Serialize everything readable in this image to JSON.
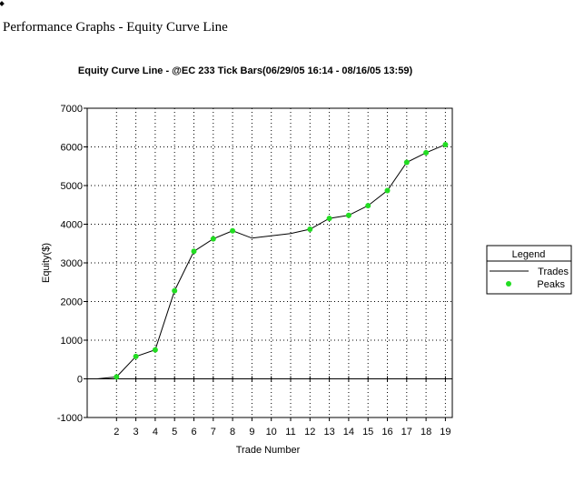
{
  "page": {
    "heading": "Performance Graphs - Equity Curve Line"
  },
  "chart_data": {
    "type": "line",
    "title": "Equity Curve Line - @EC 233 Tick Bars(06/29/05 16:14 - 08/16/05 13:59)",
    "xlabel": "Trade Number",
    "ylabel": "Equity($)",
    "xlim": [
      1,
      19
    ],
    "ylim": [
      -1000,
      7000
    ],
    "xticks": [
      2,
      3,
      4,
      5,
      6,
      7,
      8,
      9,
      10,
      11,
      12,
      13,
      14,
      15,
      16,
      17,
      18,
      19
    ],
    "yticks": [
      -1000,
      0,
      1000,
      2000,
      3000,
      4000,
      5000,
      6000,
      7000
    ],
    "grid": true,
    "series": [
      {
        "name": "Trades",
        "x": [
          1,
          2,
          3,
          4,
          5,
          6,
          7,
          8,
          9,
          10,
          11,
          12,
          13,
          14,
          15,
          16,
          17,
          18,
          19
        ],
        "values": [
          0,
          50,
          580,
          750,
          2280,
          3300,
          3620,
          3830,
          3640,
          3700,
          3760,
          3870,
          4150,
          4230,
          4480,
          4870,
          5600,
          5850,
          6060
        ],
        "color": "#000000"
      },
      {
        "name": "Peaks",
        "x": [
          2,
          3,
          4,
          5,
          6,
          7,
          8,
          12,
          13,
          14,
          15,
          16,
          17,
          18,
          19
        ],
        "values": [
          50,
          580,
          750,
          2280,
          3300,
          3620,
          3830,
          3870,
          4150,
          4230,
          4480,
          4870,
          5600,
          5850,
          6060
        ],
        "color": "#22dd22"
      }
    ],
    "legend": {
      "title": "Legend",
      "position": "right"
    }
  }
}
